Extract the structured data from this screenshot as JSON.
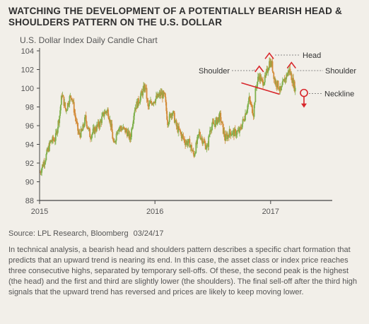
{
  "title": "WATCHING THE DEVELOPMENT OF A POTENTIALLY BEARISH HEAD & SHOULDERS PATTERN ON THE U.S. DOLLAR",
  "source": "Source: LPL Research, Bloomberg",
  "source_date": "03/24/17",
  "description": "In technical analysis, a bearish head and shoulders pattern describes a specific chart formation that predicts that an upward trend is nearing its end. In this case, the asset class or index price reaches three consecutive highs, separated by temporary sell-offs. Of these, the second peak is the highest (the head) and the first and third are slightly lower (the shoulders). The final sell-off after the third high signals that the upward trend has reversed and prices are likely to keep moving lower.",
  "colors": {
    "candle_up": "#7fb04c",
    "candle_down": "#d38a36",
    "annotation": "#d8262b",
    "axis": "#444444",
    "background": "#f2efe9"
  },
  "chart_data": {
    "type": "candlestick",
    "title": "U.S. Dollar Index Daily Candle Chart",
    "ylim": [
      88,
      104
    ],
    "yticks": [
      "88",
      "90",
      "92",
      "94",
      "96",
      "98",
      "100",
      "102",
      "104"
    ],
    "xticks": [
      {
        "label": "2015",
        "x": "2015-01-01"
      },
      {
        "label": "2016",
        "x": "2016-01-01"
      },
      {
        "label": "2017",
        "x": "2017-01-01"
      }
    ],
    "xlim": [
      "2015-01-01",
      "2017-07-15"
    ],
    "grid": false,
    "series": [
      {
        "x": [
          "2015-01-02",
          "2015-01-20",
          "2015-02-05",
          "2015-02-20",
          "2015-03-05",
          "2015-03-13",
          "2015-03-25",
          "2015-04-05",
          "2015-04-13",
          "2015-04-25",
          "2015-05-05",
          "2015-05-15",
          "2015-05-26",
          "2015-06-10",
          "2015-06-25",
          "2015-07-10",
          "2015-07-25",
          "2015-08-05",
          "2015-08-15",
          "2015-08-24",
          "2015-09-05",
          "2015-09-20",
          "2015-10-05",
          "2015-10-15",
          "2015-10-28",
          "2015-11-10",
          "2015-11-25",
          "2015-12-02",
          "2015-12-10",
          "2015-12-20",
          "2016-01-05",
          "2016-01-20",
          "2016-02-01",
          "2016-02-10",
          "2016-02-25",
          "2016-03-10",
          "2016-03-20",
          "2016-04-05",
          "2016-04-20",
          "2016-05-03",
          "2016-05-20",
          "2016-06-05",
          "2016-06-15",
          "2016-06-24",
          "2016-07-10",
          "2016-07-25",
          "2016-08-10",
          "2016-08-25",
          "2016-09-10",
          "2016-09-25",
          "2016-10-10",
          "2016-10-25",
          "2016-11-08",
          "2016-11-15",
          "2016-11-25",
          "2016-12-05",
          "2016-12-15",
          "2016-12-28",
          "2017-01-05",
          "2017-01-15",
          "2017-01-25",
          "2017-02-02",
          "2017-02-10",
          "2017-02-20",
          "2017-03-01",
          "2017-03-10",
          "2017-03-20"
        ],
        "values": [
          91.0,
          92.6,
          94.3,
          94.6,
          97.1,
          99.4,
          97.6,
          98.9,
          99.2,
          96.7,
          95.0,
          95.3,
          96.8,
          94.9,
          95.6,
          96.2,
          97.4,
          97.6,
          96.0,
          93.8,
          95.8,
          95.7,
          95.3,
          94.6,
          97.8,
          98.6,
          99.8,
          100.2,
          97.9,
          98.5,
          98.9,
          99.4,
          99.1,
          96.4,
          97.6,
          95.8,
          95.3,
          94.3,
          94.1,
          92.8,
          95.2,
          94.1,
          93.6,
          95.8,
          96.3,
          97.0,
          94.6,
          95.3,
          95.2,
          95.4,
          96.9,
          98.8,
          97.3,
          100.0,
          101.4,
          100.6,
          101.0,
          102.8,
          102.5,
          100.7,
          100.3,
          99.6,
          100.6,
          101.3,
          102.0,
          101.0,
          99.9
        ]
      }
    ],
    "annotations": {
      "labels": [
        "Shoulder",
        "Head",
        "Shoulder",
        "Neckline"
      ],
      "neckline": {
        "x": [
          "2016-11-03",
          "2017-04-15"
        ],
        "y": [
          100.5,
          99.4
        ]
      }
    }
  }
}
